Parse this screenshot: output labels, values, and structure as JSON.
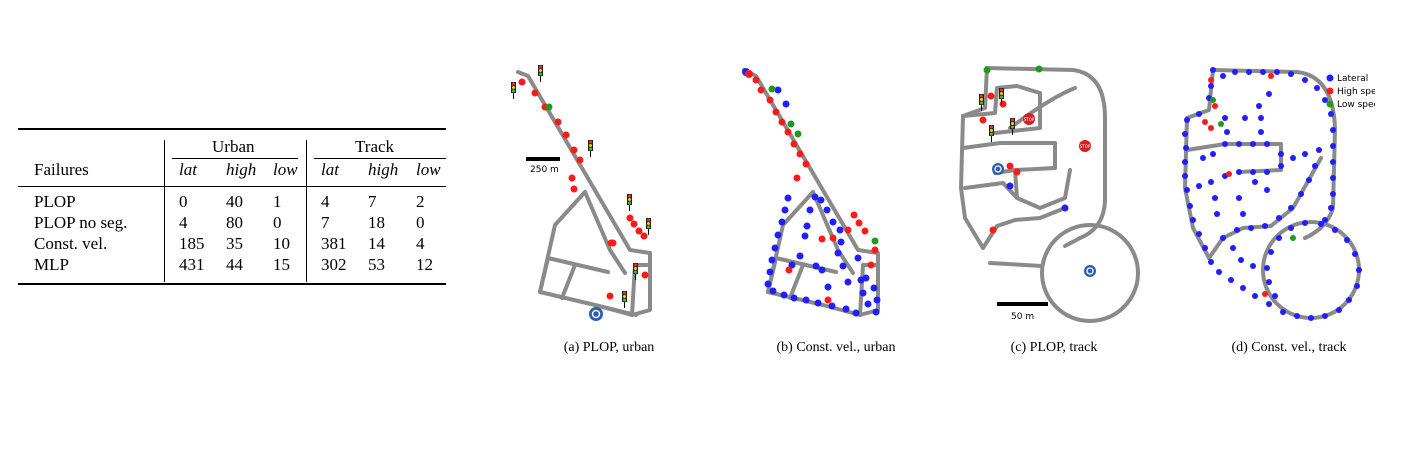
{
  "table": {
    "group_headers": [
      "Urban",
      "Track"
    ],
    "row_header": "Failures",
    "sub_headers": [
      "lat",
      "high",
      "low",
      "lat",
      "high",
      "low"
    ],
    "rows": [
      {
        "label": "PLOP",
        "values": [
          "0",
          "40",
          "1",
          "4",
          "7",
          "2"
        ]
      },
      {
        "label": "PLOP no seg.",
        "values": [
          "4",
          "80",
          "0",
          "7",
          "18",
          "0"
        ]
      },
      {
        "label": "Const. vel.",
        "values": [
          "185",
          "35",
          "10",
          "381",
          "14",
          "4"
        ]
      },
      {
        "label": "MLP",
        "values": [
          "431",
          "44",
          "15",
          "302",
          "53",
          "12"
        ]
      }
    ]
  },
  "figures": [
    {
      "caption": "(a) PLOP, urban",
      "scale_label": "250 m"
    },
    {
      "caption": "(b) Const. vel., urban"
    },
    {
      "caption": "(c) PLOP, track",
      "scale_label": "50 m"
    },
    {
      "caption": "(d) Const. vel., track"
    }
  ],
  "legend": {
    "items": [
      "Lateral",
      "High speed",
      "Low speed"
    ]
  },
  "colors": {
    "road": "#8a8a8a",
    "lateral": "#1f1fff",
    "high_speed": "#ff1a1a",
    "low_speed": "#1f9a1f",
    "roundabout": "#2a5fb0",
    "stop": "#d42020"
  },
  "icons": [
    "traffic-light-icon",
    "roundabout-icon",
    "stop-sign-icon"
  ],
  "sign_text": "STOP"
}
